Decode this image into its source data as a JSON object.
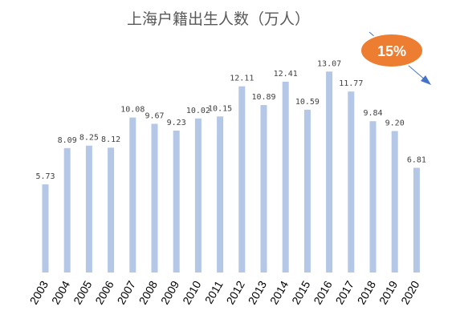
{
  "chart_data": {
    "type": "bar",
    "title": "上海户籍出生人数（万人）",
    "categories": [
      "2003",
      "2004",
      "2005",
      "2006",
      "2007",
      "2008",
      "2009",
      "2010",
      "2011",
      "2012",
      "2013",
      "2014",
      "2015",
      "2016",
      "2017",
      "2018",
      "2019",
      "2020"
    ],
    "values": [
      5.73,
      8.09,
      8.25,
      8.12,
      10.08,
      9.67,
      9.23,
      10.02,
      10.15,
      12.11,
      10.89,
      12.41,
      10.59,
      13.07,
      11.77,
      9.84,
      9.2,
      6.81
    ],
    "value_labels": [
      "5.73",
      "8.09",
      "8.25",
      "8.12",
      "10.08",
      "9.67",
      "9.23",
      "10.02",
      "10.15",
      "12.11",
      "10.89",
      "12.41",
      "10.59",
      "13.07",
      "11.77",
      "9.84",
      "9.20",
      "6.81"
    ],
    "ylim": [
      0,
      14.7
    ],
    "xlabel": "",
    "ylabel": "",
    "grid": false,
    "legend": "none",
    "annotation": {
      "text": "15%",
      "shape": "orange-ellipse",
      "arrow": "downward trend arrow"
    },
    "colors": {
      "bar": "#b4c7e7",
      "badge_fill": "#ed7d31",
      "badge_stroke": "#ffffff",
      "arrow": "#4472c4"
    }
  }
}
